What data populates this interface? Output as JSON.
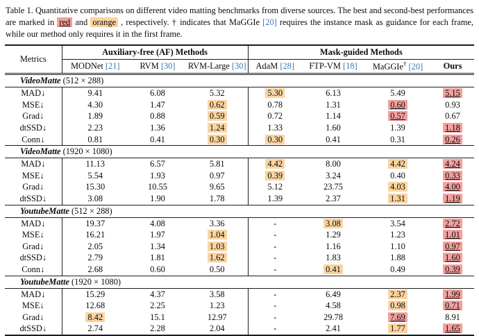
{
  "caption": {
    "s1": "Table 1. Quantitative comparisons on different video matting benchmarks from diverse sources. The best and second-best performances are marked in ",
    "red_label": "red",
    "s2": " and ",
    "orange_label": "orange",
    "s3": " , respectively. † indicates that MaGGIe ",
    "cite": "[20]",
    "s4": " requires the instance mask as guidance for each frame, while our method only requires it in the first frame."
  },
  "table": {
    "metrics_header": "Metrics",
    "group_af": "Auxiliary-free (AF) Methods",
    "group_mask": "Mask-guided Methods",
    "methods": [
      {
        "name": "MODNet",
        "cite": "[21]"
      },
      {
        "name": "RVM",
        "cite": "[30]"
      },
      {
        "name": "RVM-Large",
        "cite": "[30]"
      },
      {
        "name": "AdaM",
        "cite": "[28]"
      },
      {
        "name": "FTP-VM",
        "cite": "[18]"
      },
      {
        "name": "MaGGIe",
        "sup": "†",
        "cite": "[20]"
      },
      {
        "name": "Ours"
      }
    ],
    "highlight_colors": {
      "red": "#F3A09E",
      "orange": "#FAD4A0"
    },
    "sections": [
      {
        "title": "VideoMatte",
        "resolution": "(512 × 288)",
        "rows": [
          {
            "metric": "MAD↓",
            "values": [
              {
                "v": "9.41"
              },
              {
                "v": "6.08"
              },
              {
                "v": "5.32"
              },
              {
                "v": "5.30",
                "hl": "orange"
              },
              {
                "v": "6.13"
              },
              {
                "v": "5.49"
              },
              {
                "v": "5.15",
                "hl": "red"
              }
            ]
          },
          {
            "metric": "MSE↓",
            "values": [
              {
                "v": "4.30"
              },
              {
                "v": "1.47"
              },
              {
                "v": "0.62",
                "hl": "orange"
              },
              {
                "v": "0.78"
              },
              {
                "v": "1.31"
              },
              {
                "v": "0.60",
                "hl": "red"
              },
              {
                "v": "0.93"
              }
            ]
          },
          {
            "metric": "Grad↓",
            "values": [
              {
                "v": "1.89"
              },
              {
                "v": "0.88"
              },
              {
                "v": "0.59",
                "hl": "orange"
              },
              {
                "v": "0.72"
              },
              {
                "v": "1.14"
              },
              {
                "v": "0.57",
                "hl": "red"
              },
              {
                "v": "0.67"
              }
            ]
          },
          {
            "metric": "dtSSD↓",
            "values": [
              {
                "v": "2.23"
              },
              {
                "v": "1.36"
              },
              {
                "v": "1.24",
                "hl": "orange"
              },
              {
                "v": "1.33"
              },
              {
                "v": "1.60"
              },
              {
                "v": "1.39"
              },
              {
                "v": "1.18",
                "hl": "red"
              }
            ]
          },
          {
            "metric": "Conn↓",
            "values": [
              {
                "v": "0.81"
              },
              {
                "v": "0.41"
              },
              {
                "v": "0.30",
                "hl": "orange"
              },
              {
                "v": "0.30",
                "hl": "orange"
              },
              {
                "v": "0.41"
              },
              {
                "v": "0.31"
              },
              {
                "v": "0.26",
                "hl": "red"
              }
            ]
          }
        ]
      },
      {
        "title": "VideoMatte",
        "resolution": "(1920 × 1080)",
        "rows": [
          {
            "metric": "MAD↓",
            "values": [
              {
                "v": "11.13"
              },
              {
                "v": "6.57"
              },
              {
                "v": "5.81"
              },
              {
                "v": "4.42",
                "hl": "orange"
              },
              {
                "v": "8.00"
              },
              {
                "v": "4.42",
                "hl": "orange"
              },
              {
                "v": "4.24",
                "hl": "red"
              }
            ]
          },
          {
            "metric": "MSE↓",
            "values": [
              {
                "v": "5.54"
              },
              {
                "v": "1.93"
              },
              {
                "v": "0.97"
              },
              {
                "v": "0.39",
                "hl": "orange"
              },
              {
                "v": "3.24"
              },
              {
                "v": "0.40"
              },
              {
                "v": "0.33",
                "hl": "red"
              }
            ]
          },
          {
            "metric": "Grad↓",
            "values": [
              {
                "v": "15.30"
              },
              {
                "v": "10.55"
              },
              {
                "v": "9.65"
              },
              {
                "v": "5.12"
              },
              {
                "v": "23.75"
              },
              {
                "v": "4.03",
                "hl": "orange"
              },
              {
                "v": "4.00",
                "hl": "red"
              }
            ]
          },
          {
            "metric": "dtSSD↓",
            "values": [
              {
                "v": "3.08"
              },
              {
                "v": "1.90"
              },
              {
                "v": "1.78"
              },
              {
                "v": "1.39"
              },
              {
                "v": "2.37"
              },
              {
                "v": "1.31",
                "hl": "orange"
              },
              {
                "v": "1.19",
                "hl": "red"
              }
            ]
          }
        ]
      },
      {
        "title": "YoutubeMatte",
        "resolution": "(512 × 288)",
        "rows": [
          {
            "metric": "MAD↓",
            "values": [
              {
                "v": "19.37"
              },
              {
                "v": "4.08"
              },
              {
                "v": "3.36"
              },
              {
                "v": "-"
              },
              {
                "v": "3.08",
                "hl": "orange"
              },
              {
                "v": "3.54"
              },
              {
                "v": "2.72",
                "hl": "red"
              }
            ]
          },
          {
            "metric": "MSE↓",
            "values": [
              {
                "v": "16.21"
              },
              {
                "v": "1.97"
              },
              {
                "v": "1.04",
                "hl": "orange"
              },
              {
                "v": "-"
              },
              {
                "v": "1.29"
              },
              {
                "v": "1.23"
              },
              {
                "v": "1.01",
                "hl": "red"
              }
            ]
          },
          {
            "metric": "Grad↓",
            "values": [
              {
                "v": "2.05"
              },
              {
                "v": "1.34"
              },
              {
                "v": "1.03",
                "hl": "orange"
              },
              {
                "v": "-"
              },
              {
                "v": "1.16"
              },
              {
                "v": "1.10"
              },
              {
                "v": "0.97",
                "hl": "red"
              }
            ]
          },
          {
            "metric": "dtSSD↓",
            "values": [
              {
                "v": "2.79"
              },
              {
                "v": "1.81"
              },
              {
                "v": "1.62",
                "hl": "orange"
              },
              {
                "v": "-"
              },
              {
                "v": "1.83"
              },
              {
                "v": "1.88"
              },
              {
                "v": "1.60",
                "hl": "red"
              }
            ]
          },
          {
            "metric": "Conn↓",
            "values": [
              {
                "v": "2.68"
              },
              {
                "v": "0.60"
              },
              {
                "v": "0.50"
              },
              {
                "v": "-"
              },
              {
                "v": "0.41",
                "hl": "orange"
              },
              {
                "v": "0.49"
              },
              {
                "v": "0.39",
                "hl": "red"
              }
            ]
          }
        ]
      },
      {
        "title": "YoutubeMatte",
        "resolution": "(1920 × 1080)",
        "rows": [
          {
            "metric": "MAD↓",
            "values": [
              {
                "v": "15.29"
              },
              {
                "v": "4.37"
              },
              {
                "v": "3.58"
              },
              {
                "v": "-"
              },
              {
                "v": "6.49"
              },
              {
                "v": "2.37",
                "hl": "orange"
              },
              {
                "v": "1.99",
                "hl": "red"
              }
            ]
          },
          {
            "metric": "MSE↓",
            "values": [
              {
                "v": "12.68"
              },
              {
                "v": "2.25"
              },
              {
                "v": "1.23"
              },
              {
                "v": "-"
              },
              {
                "v": "4.58"
              },
              {
                "v": "0.98",
                "hl": "orange"
              },
              {
                "v": "0.71",
                "hl": "red"
              }
            ]
          },
          {
            "metric": "Grad↓",
            "values": [
              {
                "v": "8.42",
                "hl": "orange"
              },
              {
                "v": "15.1"
              },
              {
                "v": "12.97"
              },
              {
                "v": "-"
              },
              {
                "v": "29.78"
              },
              {
                "v": "7.69",
                "hl": "red"
              },
              {
                "v": "8.91"
              }
            ]
          },
          {
            "metric": "dtSSD↓",
            "values": [
              {
                "v": "2.74"
              },
              {
                "v": "2.28"
              },
              {
                "v": "2.04"
              },
              {
                "v": "-"
              },
              {
                "v": "2.41"
              },
              {
                "v": "1.77",
                "hl": "orange"
              },
              {
                "v": "1.65",
                "hl": "red"
              }
            ]
          }
        ]
      }
    ]
  }
}
